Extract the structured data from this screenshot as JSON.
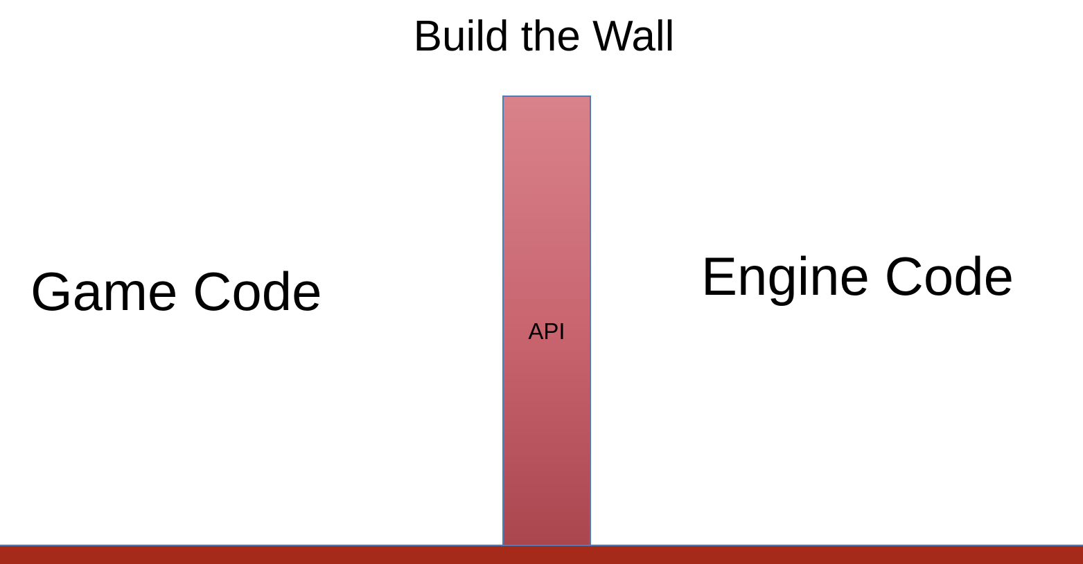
{
  "slide": {
    "title": "Build the Wall",
    "left_label": "Game Code",
    "right_label": "Engine Code",
    "wall_label": "API"
  },
  "colors": {
    "wall_top": "#d9828a",
    "wall_bottom": "#a9464e",
    "wall_border": "#4a7ebb",
    "ground": "#a52a1a",
    "background": "#ffffff",
    "text": "#000000"
  }
}
